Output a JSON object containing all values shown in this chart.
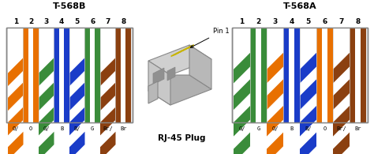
{
  "title_left": "T-568B",
  "title_right": "T-568A",
  "plug_label": "RJ-45 Plug",
  "pin1_label": "Pin 1",
  "bg_color": "#ffffff",
  "panel_facecolor": "#e8e8e8",
  "panel_edgecolor": "#888888",
  "t568b_wires": [
    {
      "stripe": true,
      "color": "#e87000",
      "label": "O/"
    },
    {
      "stripe": false,
      "color": "#e87000",
      "label": "O"
    },
    {
      "stripe": true,
      "color": "#3a8c3a",
      "label": "G/"
    },
    {
      "stripe": false,
      "color": "#1a3cc8",
      "label": "B"
    },
    {
      "stripe": true,
      "color": "#1a3cc8",
      "label": "B/"
    },
    {
      "stripe": false,
      "color": "#3a8c3a",
      "label": "G"
    },
    {
      "stripe": true,
      "color": "#8B4010",
      "label": "Br/"
    },
    {
      "stripe": false,
      "color": "#8B4010",
      "label": "Br"
    }
  ],
  "t568a_wires": [
    {
      "stripe": true,
      "color": "#3a8c3a",
      "label": "G/"
    },
    {
      "stripe": false,
      "color": "#3a8c3a",
      "label": "G"
    },
    {
      "stripe": true,
      "color": "#e87000",
      "label": "O/"
    },
    {
      "stripe": false,
      "color": "#1a3cc8",
      "label": "B"
    },
    {
      "stripe": true,
      "color": "#1a3cc8",
      "label": "B/"
    },
    {
      "stripe": false,
      "color": "#e87000",
      "label": "O"
    },
    {
      "stripe": true,
      "color": "#8B4010",
      "label": "Br/"
    },
    {
      "stripe": false,
      "color": "#8B4010",
      "label": "Br"
    }
  ],
  "fig_w": 4.74,
  "fig_h": 1.95,
  "dpi": 100
}
